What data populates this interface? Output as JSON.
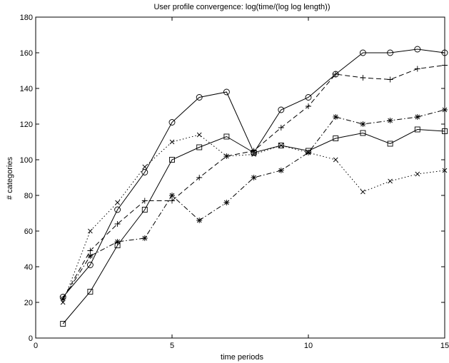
{
  "chart_data": {
    "type": "line",
    "title": "User profile convergence: log(time/(log log length))",
    "xlabel": "time periods",
    "ylabel": "# categories",
    "xlim": [
      0,
      15
    ],
    "ylim": [
      0,
      180
    ],
    "xticks": [
      0,
      5,
      10,
      15
    ],
    "yticks": [
      0,
      20,
      40,
      60,
      80,
      100,
      120,
      140,
      160,
      180
    ],
    "grid": false,
    "series": [
      {
        "line_style": "solid",
        "marker": "circle",
        "x": [
          1,
          2,
          3,
          4,
          5,
          6,
          7,
          8,
          9,
          10,
          11,
          12,
          13,
          14,
          15
        ],
        "y": [
          23,
          41,
          72,
          93,
          121,
          135,
          138,
          104,
          128,
          135,
          148,
          160,
          160,
          162,
          160
        ]
      },
      {
        "line_style": "dashed",
        "marker": "plus",
        "x": [
          1,
          2,
          3,
          4,
          5,
          6,
          7,
          8,
          9,
          10,
          11,
          12,
          13,
          14,
          15
        ],
        "y": [
          22,
          49,
          64,
          77,
          77,
          90,
          102,
          105,
          118,
          130,
          148,
          146,
          145,
          151,
          153
        ]
      },
      {
        "line_style": "dashdot",
        "marker": "star",
        "x": [
          1,
          2,
          3,
          4,
          5,
          6,
          7,
          8,
          9,
          10,
          11,
          12,
          13,
          14,
          15
        ],
        "y": [
          22,
          46,
          54,
          56,
          80,
          66,
          76,
          90,
          94,
          104,
          124,
          120,
          122,
          124,
          128
        ]
      },
      {
        "line_style": "solid",
        "marker": "square",
        "x": [
          1,
          2,
          3,
          4,
          5,
          6,
          7,
          8,
          9,
          10,
          11,
          12,
          13,
          14,
          15
        ],
        "y": [
          8,
          26,
          52,
          72,
          100,
          107,
          113,
          104,
          108,
          105,
          112,
          115,
          109,
          117,
          116
        ]
      },
      {
        "line_style": "dotted",
        "marker": "x",
        "x": [
          1,
          2,
          3,
          4,
          5,
          6,
          7,
          8,
          9,
          10,
          11,
          12,
          13,
          14,
          15
        ],
        "y": [
          20,
          60,
          76,
          96,
          110,
          114,
          102,
          103,
          108,
          104,
          100,
          82,
          88,
          92,
          94
        ]
      }
    ]
  }
}
